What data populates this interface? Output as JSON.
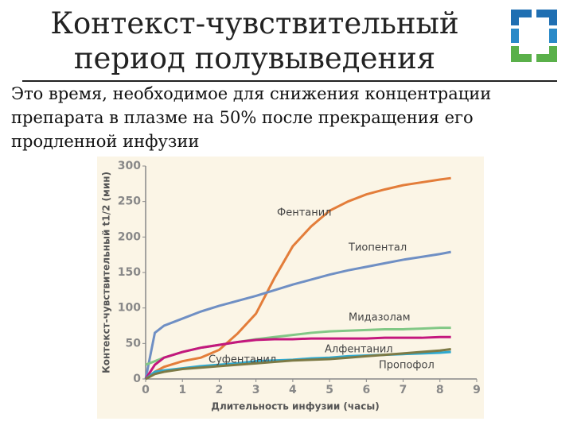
{
  "title": [
    "Контекст-чувствительный",
    "период полувыведения"
  ],
  "text": [
    "Это время, необходимое для снижения концентрации",
    "препарата в плазме на 50% после прекращения его",
    "продленной инфузии"
  ],
  "chart_data": {
    "type": "line",
    "xlabel": "Длительность инфузии (часы)",
    "ylabel": "Контекст-чувствительный t1/2 (мин)",
    "x": [
      0,
      0.25,
      0.5,
      1,
      1.5,
      2,
      2.5,
      3,
      3.5,
      4,
      4.5,
      5,
      5.5,
      6,
      6.5,
      7,
      7.5,
      8,
      8.3
    ],
    "series": [
      {
        "name": "Фентанил",
        "color": "#e37d3a",
        "values": [
          0,
          10,
          17,
          25,
          30,
          41,
          64,
          92,
          142,
          187,
          215,
          237,
          250,
          260,
          267,
          273,
          277,
          281,
          283
        ]
      },
      {
        "name": "Тиопентал",
        "color": "#6f8fc4",
        "values": [
          0,
          65,
          75,
          85,
          95,
          103,
          110,
          117,
          125,
          133,
          140,
          147,
          153,
          158,
          163,
          168,
          172,
          176,
          179
        ]
      },
      {
        "name": "Мидазолам",
        "color": "#82c886",
        "values": [
          20,
          25,
          30,
          38,
          44,
          48,
          52,
          56,
          59,
          62,
          65,
          67,
          68,
          69,
          70,
          70,
          71,
          72,
          72
        ]
      },
      {
        "name": "Алфентанил",
        "color": "#c4177e",
        "values": [
          0,
          20,
          30,
          38,
          44,
          48,
          52,
          55,
          56,
          56,
          57,
          57,
          57,
          57,
          58,
          58,
          58,
          59,
          59
        ]
      },
      {
        "name": "Суфентанил",
        "color": "#2fa9cf",
        "values": [
          0,
          10,
          12,
          15,
          18,
          20,
          22,
          25,
          26,
          27,
          29,
          30,
          32,
          33,
          34,
          35,
          36,
          37,
          38
        ]
      },
      {
        "name": "Пропофол",
        "color": "#7d7a45",
        "values": [
          0,
          7,
          10,
          14,
          16,
          18,
          20,
          22,
          24,
          26,
          27,
          28,
          30,
          32,
          34,
          36,
          38,
          40,
          42
        ]
      }
    ],
    "xlim": [
      0,
      9
    ],
    "xticks": [
      0,
      1,
      2,
      3,
      4,
      5,
      6,
      7,
      8,
      9
    ],
    "ylim": [
      0,
      300
    ],
    "yticks": [
      0,
      50,
      100,
      150,
      200,
      250,
      300
    ]
  }
}
